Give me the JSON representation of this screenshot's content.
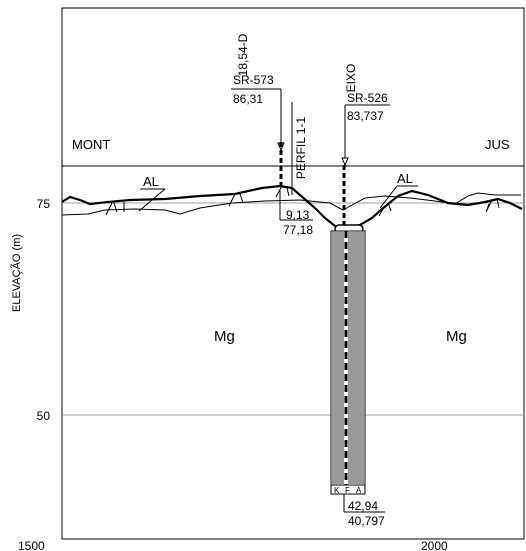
{
  "axes": {
    "y_label": "ELEVAÇÃO (m)",
    "y_ticks": [
      "75",
      "50"
    ],
    "x_ticks": [
      "1500",
      "2000"
    ]
  },
  "sides": {
    "left": "MONT",
    "right": "JUS"
  },
  "boreholes": [
    {
      "id": "SR-573",
      "elevation": "86,31",
      "offset_label": "18,54-D",
      "depth": "9,13",
      "bottom_elevation": "77,18"
    },
    {
      "id": "SR-526",
      "elevation": "83,737",
      "axis_label": "EIXO",
      "depth": "42,94",
      "bottom_elevation": "40,797"
    }
  ],
  "profile_label": "PERFIL 1-1",
  "units": {
    "alluvium": "AL",
    "bedrock": "Mg"
  },
  "core_codes": [
    "K",
    "F",
    "A"
  ],
  "colors": {
    "line": "#000000",
    "grid": "#a0a0a0"
  }
}
